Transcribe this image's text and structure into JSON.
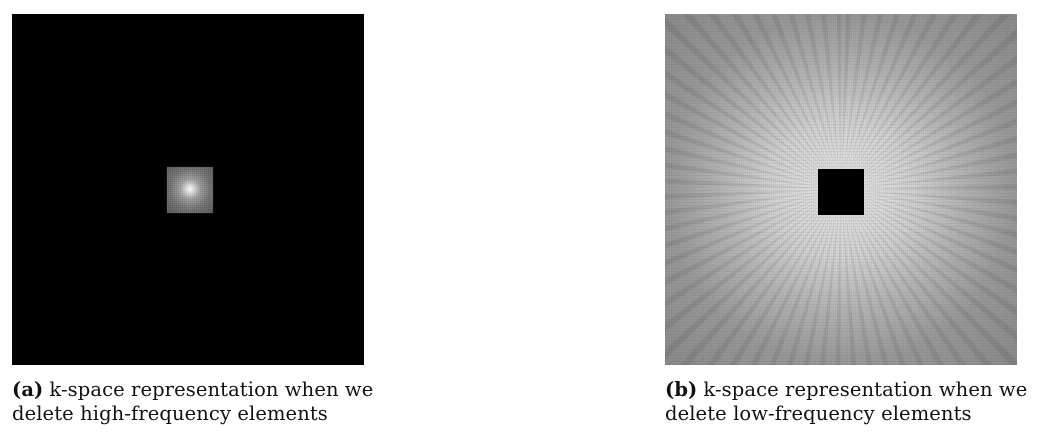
{
  "figures": [
    {
      "label": "(a)",
      "caption_line1": "k-space representation when we",
      "caption_line2": "delete high-frequency elements",
      "image_description": "mostly black k-space with small bright center"
    },
    {
      "label": "(b)",
      "caption_line1": "k-space representation when we",
      "caption_line2": "delete low-frequency elements",
      "image_description": "grey k-space with black center square"
    }
  ]
}
